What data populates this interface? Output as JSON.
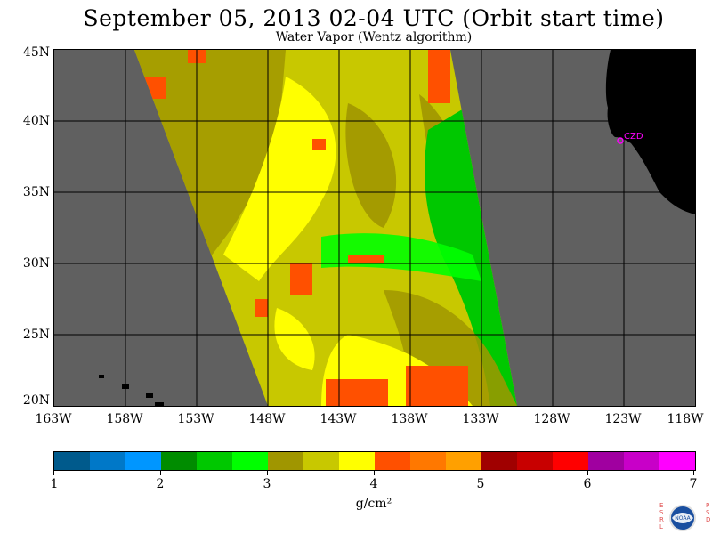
{
  "title": "September 05, 2013  02-04 UTC  (Orbit start time)",
  "subtitle": "Water Vapor (Wentz algorithm)",
  "map": {
    "lat_labels": [
      "45N",
      "40N",
      "35N",
      "30N",
      "25N",
      "20N"
    ],
    "lon_labels": [
      "163W",
      "158W",
      "153W",
      "148W",
      "143W",
      "138W",
      "133W",
      "128W",
      "123W",
      "118W"
    ],
    "station_label": "CZD",
    "colors": {
      "background": "#606060",
      "land": "#000000",
      "station": "#ff00ff",
      "grid": "#000000"
    }
  },
  "colorbar": {
    "tick_labels": [
      "1",
      "2",
      "3",
      "4",
      "5",
      "6",
      "7"
    ],
    "units": "g/cm²",
    "colors": [
      "#005a8c",
      "#0078c8",
      "#0096ff",
      "#008c00",
      "#00c800",
      "#00ff00",
      "#a09600",
      "#c8c800",
      "#ffff00",
      "#ff5000",
      "#ff7800",
      "#ffa000",
      "#a00000",
      "#c80000",
      "#ff0000",
      "#a000a0",
      "#c800c8",
      "#ff00ff"
    ]
  },
  "logo": {
    "left_letters": "ESRL",
    "right_letters": "PSD",
    "center_text": "NOAA"
  }
}
